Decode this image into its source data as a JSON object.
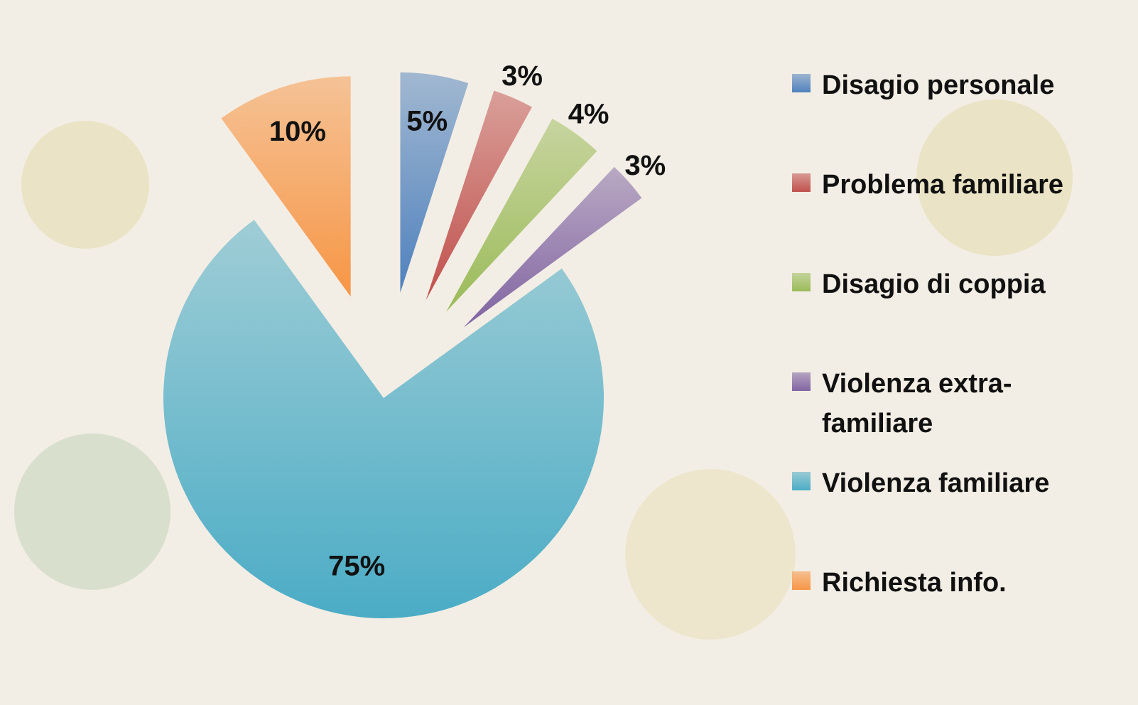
{
  "chart_data": {
    "type": "pie",
    "categories": [
      "Disagio personale",
      "Problema familiare",
      "Disagio di coppia",
      "Violenza extra-familiare",
      "Violenza familiare",
      "Richiesta info."
    ],
    "values": [
      5,
      3,
      4,
      3,
      75,
      10
    ],
    "value_labels": [
      "5%",
      "3%",
      "4%",
      "3%",
      "75%",
      "10%"
    ],
    "colors": [
      "#4f81bd",
      "#c0504d",
      "#9bbb59",
      "#8064a2",
      "#4bacc6",
      "#f79646"
    ],
    "legend": "right"
  }
}
